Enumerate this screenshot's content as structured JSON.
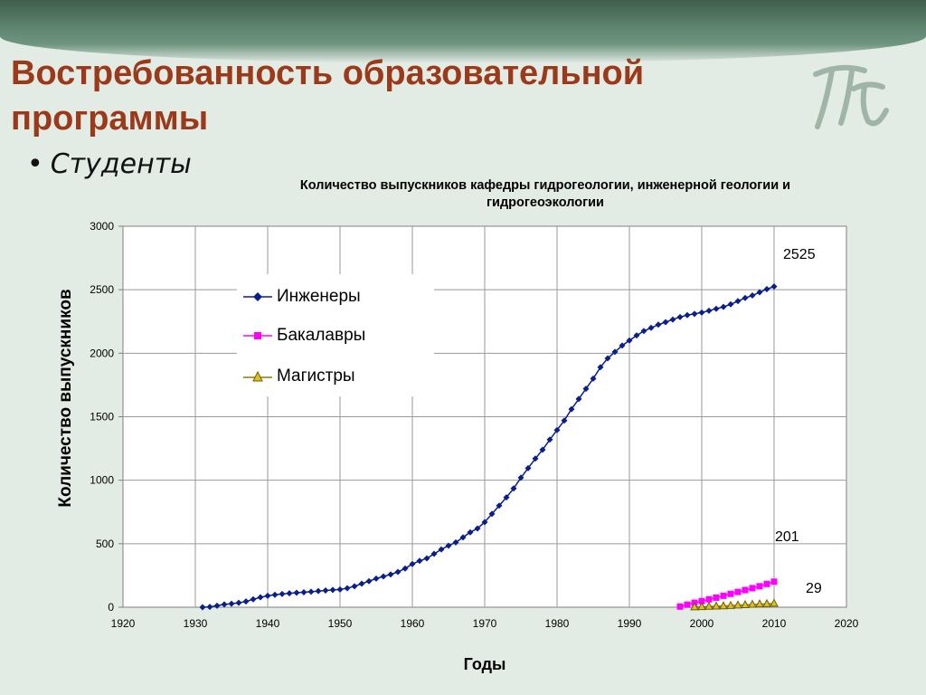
{
  "slide": {
    "title": "Востребованность образовательной программы",
    "bullet": "Студенты"
  },
  "colors": {
    "title": "#9b3a1a",
    "engineers": "#0a1f8a",
    "bachelors": "#ff00ff",
    "masters": "#e0c020"
  },
  "chart_data": {
    "type": "line",
    "title": "Количество выпускников кафедры гидрогеологии, инженерной геологии и гидрогеоэкологии",
    "xlabel": "Годы",
    "ylabel": "Количество выпускников",
    "xlim": [
      1920,
      2020
    ],
    "ylim": [
      0,
      3000
    ],
    "xticks": [
      1920,
      1930,
      1940,
      1950,
      1960,
      1970,
      1980,
      1990,
      2000,
      2010,
      2020
    ],
    "yticks": [
      0,
      500,
      1000,
      1500,
      2000,
      2500,
      3000
    ],
    "grid": true,
    "legend_position": "top-left",
    "series": [
      {
        "name": "Инженеры",
        "marker": "diamond",
        "x": [
          1931,
          1932,
          1933,
          1934,
          1935,
          1936,
          1937,
          1938,
          1939,
          1940,
          1941,
          1942,
          1943,
          1944,
          1945,
          1946,
          1947,
          1948,
          1949,
          1950,
          1951,
          1952,
          1953,
          1954,
          1955,
          1956,
          1957,
          1958,
          1959,
          1960,
          1961,
          1962,
          1963,
          1964,
          1965,
          1966,
          1967,
          1968,
          1969,
          1970,
          1971,
          1972,
          1973,
          1974,
          1975,
          1976,
          1977,
          1978,
          1979,
          1980,
          1981,
          1982,
          1983,
          1984,
          1985,
          1986,
          1987,
          1988,
          1989,
          1990,
          1991,
          1992,
          1993,
          1994,
          1995,
          1996,
          1997,
          1998,
          1999,
          2000,
          2001,
          2002,
          2003,
          2004,
          2005,
          2006,
          2007,
          2008,
          2009,
          2010
        ],
        "values": [
          0,
          3,
          12,
          22,
          28,
          35,
          45,
          62,
          78,
          90,
          98,
          104,
          110,
          114,
          118,
          122,
          127,
          132,
          136,
          140,
          150,
          165,
          185,
          205,
          225,
          242,
          258,
          278,
          305,
          340,
          365,
          385,
          420,
          455,
          485,
          510,
          550,
          590,
          620,
          670,
          735,
          800,
          865,
          935,
          1020,
          1095,
          1170,
          1240,
          1320,
          1395,
          1470,
          1560,
          1640,
          1720,
          1800,
          1890,
          1960,
          2010,
          2060,
          2100,
          2140,
          2175,
          2200,
          2225,
          2245,
          2265,
          2285,
          2300,
          2310,
          2320,
          2335,
          2350,
          2365,
          2385,
          2410,
          2435,
          2455,
          2480,
          2505,
          2525
        ]
      },
      {
        "name": "Бакалавры",
        "marker": "square",
        "x": [
          1997,
          1998,
          1999,
          2000,
          2001,
          2002,
          2003,
          2004,
          2005,
          2006,
          2007,
          2008,
          2009,
          2010
        ],
        "values": [
          5,
          20,
          35,
          48,
          62,
          75,
          90,
          105,
          120,
          135,
          150,
          165,
          183,
          201
        ]
      },
      {
        "name": "Магистры",
        "marker": "triangle",
        "x": [
          1999,
          2000,
          2001,
          2002,
          2003,
          2004,
          2005,
          2006,
          2007,
          2008,
          2009,
          2010
        ],
        "values": [
          1,
          3,
          5,
          7,
          9,
          12,
          15,
          18,
          21,
          24,
          26,
          29
        ]
      }
    ],
    "annotations": [
      {
        "text": "2525"
      },
      {
        "text": "201"
      },
      {
        "text": "29"
      }
    ]
  }
}
